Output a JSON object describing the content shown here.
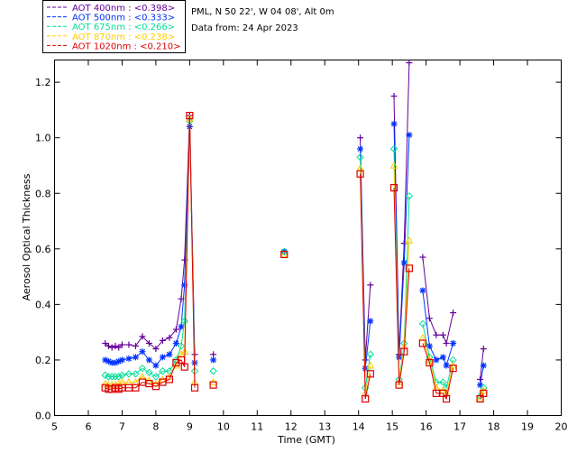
{
  "chart_data": {
    "type": "line",
    "xlabel": "Time (GMT)",
    "ylabel": "Aerosol Optical Thickness",
    "xlim": [
      5,
      20
    ],
    "ylim": [
      0.0,
      1.28
    ],
    "xticks": [
      "5",
      "6",
      "7",
      "8",
      "9",
      "10",
      "11",
      "12",
      "13",
      "14",
      "15",
      "16",
      "17",
      "18",
      "19",
      "20"
    ],
    "yticks": [
      "0.0",
      "0.2",
      "0.4",
      "0.6",
      "0.8",
      "1.0",
      "1.2"
    ],
    "info": {
      "line1": "PML, N 50 22', W 04 08', Alt 0m",
      "line2": "Data from: 24 Apr 2023"
    },
    "legend": {
      "position": "top-left",
      "entries": [
        "AOT  400nm : <0.398>",
        "AOT  500nm : <0.333>",
        "AOT  675nm : <0.266>",
        "AOT  870nm : <0.238>",
        "AOT 1020nm : <0.210>"
      ]
    },
    "series": [
      {
        "color": "#660099",
        "marker": "plus",
        "segments": [
          [
            [
              6.5,
              0.26
            ],
            [
              6.6,
              0.25
            ],
            [
              6.7,
              0.245
            ],
            [
              6.8,
              0.25
            ],
            [
              6.9,
              0.245
            ],
            [
              7.0,
              0.255
            ],
            [
              7.2,
              0.255
            ],
            [
              7.4,
              0.25
            ],
            [
              7.6,
              0.285
            ],
            [
              7.8,
              0.26
            ],
            [
              8.0,
              0.24
            ],
            [
              8.2,
              0.27
            ],
            [
              8.4,
              0.28
            ],
            [
              8.6,
              0.31
            ],
            [
              8.75,
              0.42
            ],
            [
              8.85,
              0.56
            ],
            [
              9.0,
              1.08
            ],
            [
              9.15,
              0.22
            ]
          ],
          [
            [
              9.7,
              0.22
            ]
          ],
          [
            [
              11.8,
              0.59
            ]
          ],
          [
            [
              14.05,
              1.0
            ],
            [
              14.2,
              0.2
            ],
            [
              14.35,
              0.47
            ]
          ],
          [
            [
              15.05,
              1.15
            ],
            [
              15.2,
              0.22
            ],
            [
              15.35,
              0.62
            ],
            [
              15.5,
              1.27
            ]
          ],
          [
            [
              15.9,
              0.57
            ],
            [
              16.1,
              0.35
            ],
            [
              16.3,
              0.29
            ],
            [
              16.5,
              0.29
            ],
            [
              16.6,
              0.26
            ],
            [
              16.8,
              0.37
            ]
          ],
          [
            [
              17.6,
              0.13
            ],
            [
              17.7,
              0.24
            ]
          ]
        ]
      },
      {
        "color": "#0033ff",
        "marker": "asterisk",
        "segments": [
          [
            [
              6.5,
              0.2
            ],
            [
              6.6,
              0.195
            ],
            [
              6.7,
              0.19
            ],
            [
              6.8,
              0.19
            ],
            [
              6.9,
              0.195
            ],
            [
              7.0,
              0.2
            ],
            [
              7.2,
              0.205
            ],
            [
              7.4,
              0.21
            ],
            [
              7.6,
              0.23
            ],
            [
              7.8,
              0.2
            ],
            [
              8.0,
              0.18
            ],
            [
              8.2,
              0.21
            ],
            [
              8.4,
              0.22
            ],
            [
              8.6,
              0.26
            ],
            [
              8.75,
              0.32
            ],
            [
              8.85,
              0.47
            ],
            [
              9.0,
              1.04
            ],
            [
              9.15,
              0.19
            ]
          ],
          [
            [
              9.7,
              0.2
            ]
          ],
          [
            [
              11.8,
              0.59
            ]
          ],
          [
            [
              14.05,
              0.96
            ],
            [
              14.2,
              0.17
            ],
            [
              14.35,
              0.34
            ]
          ],
          [
            [
              15.05,
              1.05
            ],
            [
              15.2,
              0.21
            ],
            [
              15.35,
              0.55
            ],
            [
              15.5,
              1.01
            ]
          ],
          [
            [
              15.9,
              0.45
            ],
            [
              16.1,
              0.25
            ],
            [
              16.3,
              0.2
            ],
            [
              16.5,
              0.21
            ],
            [
              16.6,
              0.18
            ],
            [
              16.8,
              0.26
            ]
          ],
          [
            [
              17.6,
              0.11
            ],
            [
              17.7,
              0.18
            ]
          ]
        ]
      },
      {
        "color": "#00dd99",
        "marker": "diamond",
        "segments": [
          [
            [
              6.5,
              0.145
            ],
            [
              6.6,
              0.14
            ],
            [
              6.7,
              0.14
            ],
            [
              6.8,
              0.14
            ],
            [
              6.9,
              0.14
            ],
            [
              7.0,
              0.145
            ],
            [
              7.2,
              0.15
            ],
            [
              7.4,
              0.15
            ],
            [
              7.6,
              0.17
            ],
            [
              7.8,
              0.155
            ],
            [
              8.0,
              0.14
            ],
            [
              8.2,
              0.16
            ],
            [
              8.4,
              0.16
            ],
            [
              8.6,
              0.2
            ],
            [
              8.75,
              0.25
            ],
            [
              8.85,
              0.34
            ],
            [
              9.0,
              1.06
            ],
            [
              9.15,
              0.16
            ]
          ],
          [
            [
              9.7,
              0.16
            ]
          ],
          [
            [
              11.8,
              0.59
            ]
          ],
          [
            [
              14.05,
              0.93
            ],
            [
              14.2,
              0.1
            ],
            [
              14.35,
              0.22
            ]
          ],
          [
            [
              15.05,
              0.96
            ],
            [
              15.2,
              0.13
            ],
            [
              15.35,
              0.26
            ],
            [
              15.5,
              0.79
            ]
          ],
          [
            [
              15.9,
              0.33
            ],
            [
              16.1,
              0.21
            ],
            [
              16.3,
              0.12
            ],
            [
              16.5,
              0.12
            ],
            [
              16.6,
              0.1
            ],
            [
              16.8,
              0.2
            ]
          ],
          [
            [
              17.6,
              0.07
            ],
            [
              17.7,
              0.1
            ]
          ]
        ]
      },
      {
        "color": "#ffcc00",
        "marker": "triangle",
        "segments": [
          [
            [
              6.5,
              0.115
            ],
            [
              6.6,
              0.11
            ],
            [
              6.7,
              0.11
            ],
            [
              6.8,
              0.11
            ],
            [
              6.9,
              0.115
            ],
            [
              7.0,
              0.12
            ],
            [
              7.2,
              0.12
            ],
            [
              7.4,
              0.12
            ],
            [
              7.6,
              0.14
            ],
            [
              7.8,
              0.125
            ],
            [
              8.0,
              0.115
            ],
            [
              8.2,
              0.13
            ],
            [
              8.4,
              0.14
            ],
            [
              8.6,
              0.18
            ],
            [
              8.75,
              0.22
            ],
            [
              8.85,
              0.23
            ],
            [
              9.0,
              1.07
            ],
            [
              9.15,
              0.12
            ]
          ],
          [
            [
              9.7,
              0.12
            ]
          ],
          [
            [
              11.8,
              0.58
            ]
          ],
          [
            [
              14.05,
              0.89
            ],
            [
              14.2,
              0.08
            ],
            [
              14.35,
              0.18
            ]
          ],
          [
            [
              15.05,
              0.9
            ],
            [
              15.2,
              0.12
            ],
            [
              15.35,
              0.25
            ],
            [
              15.5,
              0.63
            ]
          ],
          [
            [
              15.9,
              0.28
            ],
            [
              16.1,
              0.2
            ],
            [
              16.3,
              0.1
            ],
            [
              16.5,
              0.09
            ],
            [
              16.6,
              0.08
            ],
            [
              16.8,
              0.18
            ]
          ],
          [
            [
              17.6,
              0.06
            ],
            [
              17.7,
              0.09
            ]
          ]
        ]
      },
      {
        "color": "#dd0000",
        "marker": "square",
        "segments": [
          [
            [
              6.5,
              0.1
            ],
            [
              6.6,
              0.095
            ],
            [
              6.7,
              0.095
            ],
            [
              6.8,
              0.1
            ],
            [
              6.9,
              0.095
            ],
            [
              7.0,
              0.1
            ],
            [
              7.2,
              0.1
            ],
            [
              7.4,
              0.1
            ],
            [
              7.6,
              0.12
            ],
            [
              7.8,
              0.115
            ],
            [
              8.0,
              0.105
            ],
            [
              8.2,
              0.12
            ],
            [
              8.4,
              0.13
            ],
            [
              8.6,
              0.19
            ],
            [
              8.75,
              0.2
            ],
            [
              8.85,
              0.175
            ],
            [
              9.0,
              1.08
            ],
            [
              9.15,
              0.1
            ]
          ],
          [
            [
              9.7,
              0.11
            ]
          ],
          [
            [
              11.8,
              0.58
            ]
          ],
          [
            [
              14.05,
              0.87
            ],
            [
              14.2,
              0.06
            ],
            [
              14.35,
              0.15
            ]
          ],
          [
            [
              15.05,
              0.82
            ],
            [
              15.2,
              0.11
            ],
            [
              15.35,
              0.23
            ],
            [
              15.5,
              0.53
            ]
          ],
          [
            [
              15.9,
              0.26
            ],
            [
              16.1,
              0.19
            ],
            [
              16.3,
              0.08
            ],
            [
              16.5,
              0.08
            ],
            [
              16.6,
              0.06
            ],
            [
              16.8,
              0.17
            ]
          ],
          [
            [
              17.6,
              0.06
            ],
            [
              17.7,
              0.08
            ]
          ]
        ]
      }
    ]
  }
}
